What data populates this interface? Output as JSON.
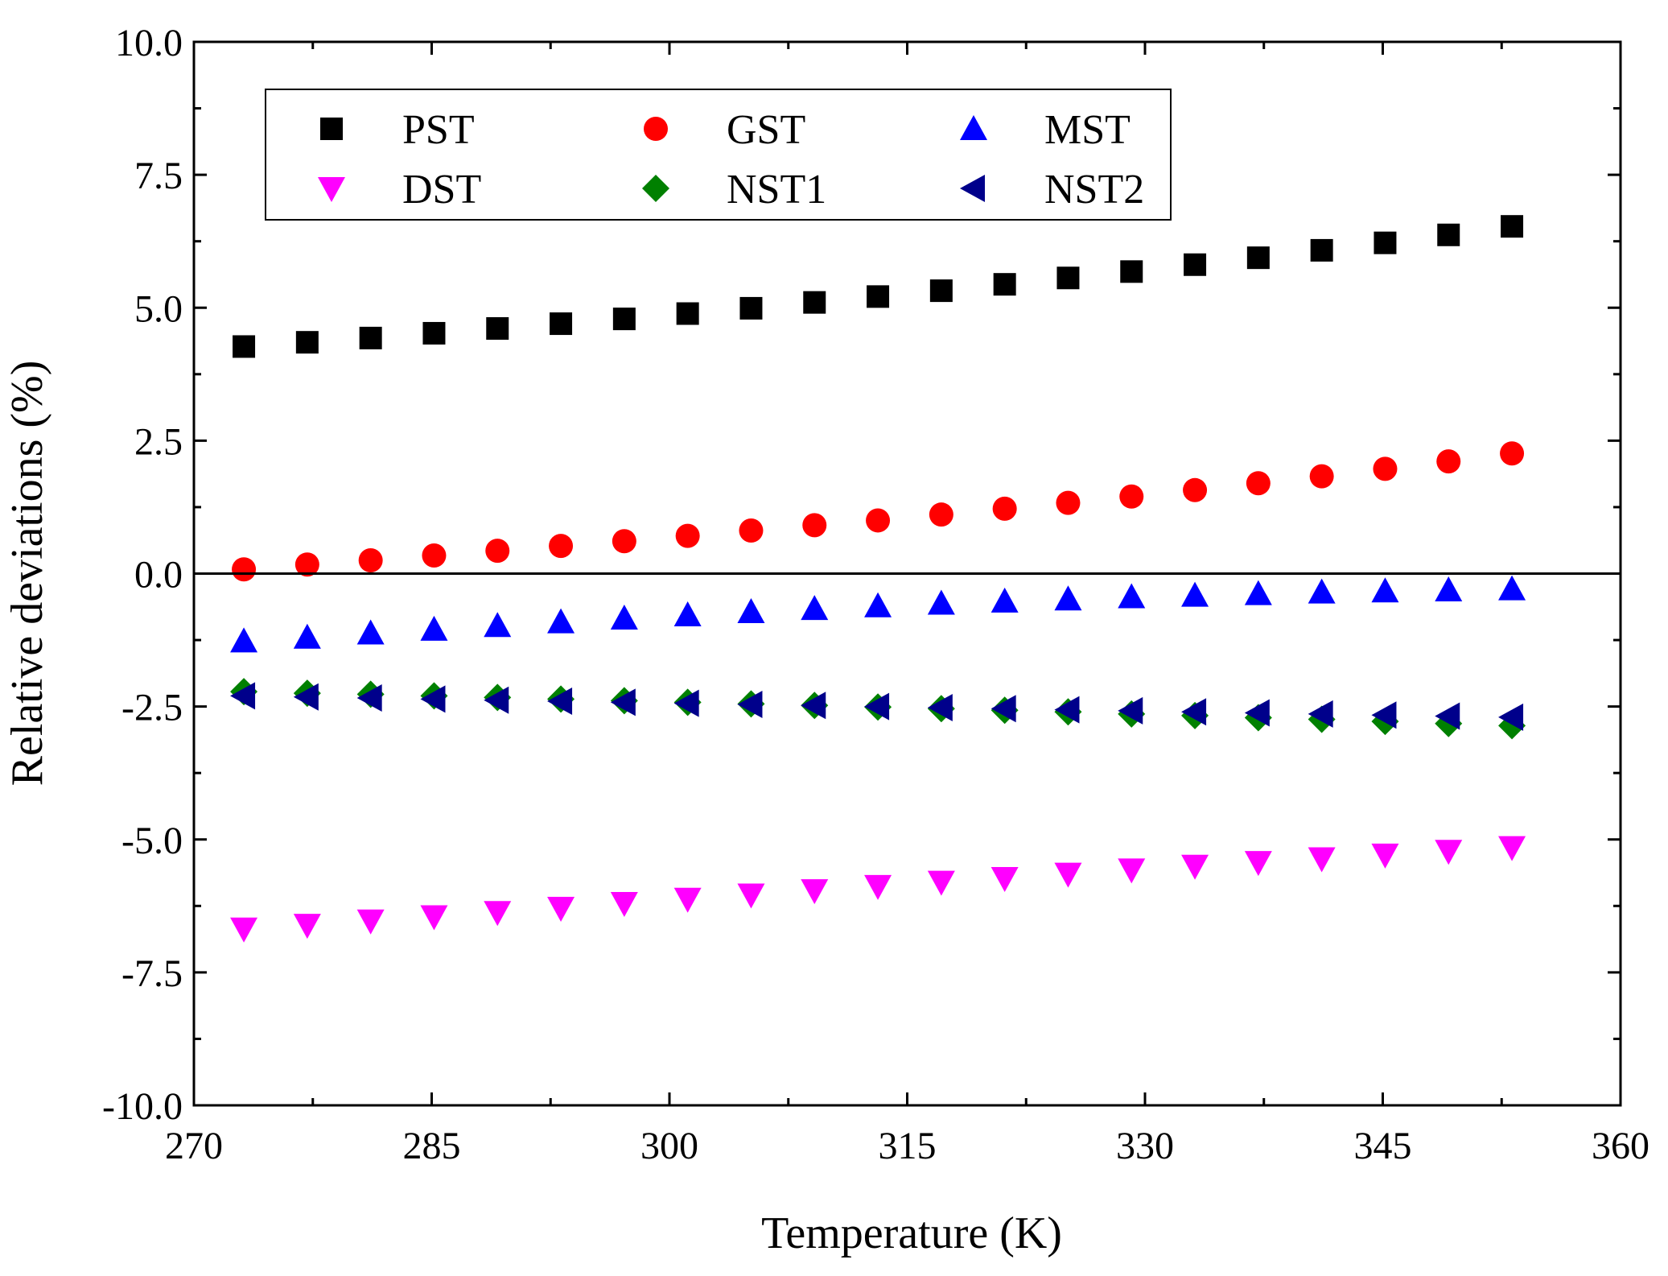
{
  "chart_data": {
    "type": "scatter",
    "title": "",
    "xlabel": "Temperature (K)",
    "ylabel": "Relative deviations (%)",
    "xlim": [
      270,
      360
    ],
    "ylim": [
      -10,
      10
    ],
    "xticks": [
      270,
      285,
      300,
      315,
      330,
      345,
      360
    ],
    "xtick_labels": [
      "270",
      "285",
      "300",
      "315",
      "330",
      "345",
      "360"
    ],
    "yticks": [
      -10,
      -7.5,
      -5,
      -2.5,
      0,
      2.5,
      5,
      7.5,
      10
    ],
    "ytick_labels": [
      "-10.0",
      "-7.5",
      "-5.0",
      "-2.5",
      "0.0",
      "2.5",
      "5.0",
      "7.5",
      "10.0"
    ],
    "reference_line": 0,
    "grid": false,
    "legend_position": "top-left",
    "x": [
      273.15,
      277.15,
      281.15,
      285.15,
      289.15,
      293.15,
      297.15,
      301.15,
      305.15,
      309.15,
      313.15,
      317.15,
      321.15,
      325.15,
      329.15,
      333.15,
      337.15,
      341.15,
      345.15,
      349.15,
      353.15
    ],
    "series": [
      {
        "name": "PST",
        "marker": "square",
        "color": "#000000",
        "values": [
          4.27,
          4.35,
          4.43,
          4.52,
          4.61,
          4.7,
          4.79,
          4.89,
          4.99,
          5.1,
          5.21,
          5.32,
          5.44,
          5.56,
          5.68,
          5.81,
          5.94,
          6.08,
          6.22,
          6.37,
          6.53
        ]
      },
      {
        "name": "GST",
        "marker": "circle",
        "color": "#ff0000",
        "values": [
          0.08,
          0.17,
          0.25,
          0.34,
          0.43,
          0.52,
          0.61,
          0.71,
          0.81,
          0.91,
          1.0,
          1.11,
          1.22,
          1.33,
          1.45,
          1.57,
          1.7,
          1.83,
          1.97,
          2.11,
          2.26
        ]
      },
      {
        "name": "MST",
        "marker": "triangle-up",
        "color": "#0000ff",
        "values": [
          -1.27,
          -1.2,
          -1.12,
          -1.05,
          -0.98,
          -0.91,
          -0.84,
          -0.78,
          -0.72,
          -0.66,
          -0.61,
          -0.56,
          -0.52,
          -0.48,
          -0.44,
          -0.41,
          -0.38,
          -0.35,
          -0.33,
          -0.31,
          -0.29
        ]
      },
      {
        "name": "DST",
        "marker": "triangle-down",
        "color": "#ff00ff",
        "values": [
          -6.68,
          -6.61,
          -6.53,
          -6.45,
          -6.37,
          -6.29,
          -6.2,
          -6.12,
          -6.04,
          -5.96,
          -5.88,
          -5.8,
          -5.73,
          -5.65,
          -5.57,
          -5.5,
          -5.43,
          -5.36,
          -5.29,
          -5.22,
          -5.15
        ]
      },
      {
        "name": "NST1",
        "marker": "diamond",
        "color": "#008000",
        "values": [
          -2.22,
          -2.25,
          -2.27,
          -2.3,
          -2.33,
          -2.36,
          -2.39,
          -2.42,
          -2.45,
          -2.48,
          -2.51,
          -2.54,
          -2.57,
          -2.6,
          -2.64,
          -2.67,
          -2.71,
          -2.74,
          -2.78,
          -2.82,
          -2.86
        ]
      },
      {
        "name": "NST2",
        "marker": "triangle-left",
        "color": "#00008b",
        "values": [
          -2.3,
          -2.32,
          -2.34,
          -2.36,
          -2.38,
          -2.4,
          -2.42,
          -2.44,
          -2.46,
          -2.48,
          -2.5,
          -2.52,
          -2.54,
          -2.56,
          -2.58,
          -2.6,
          -2.62,
          -2.64,
          -2.66,
          -2.68,
          -2.7
        ]
      }
    ]
  }
}
